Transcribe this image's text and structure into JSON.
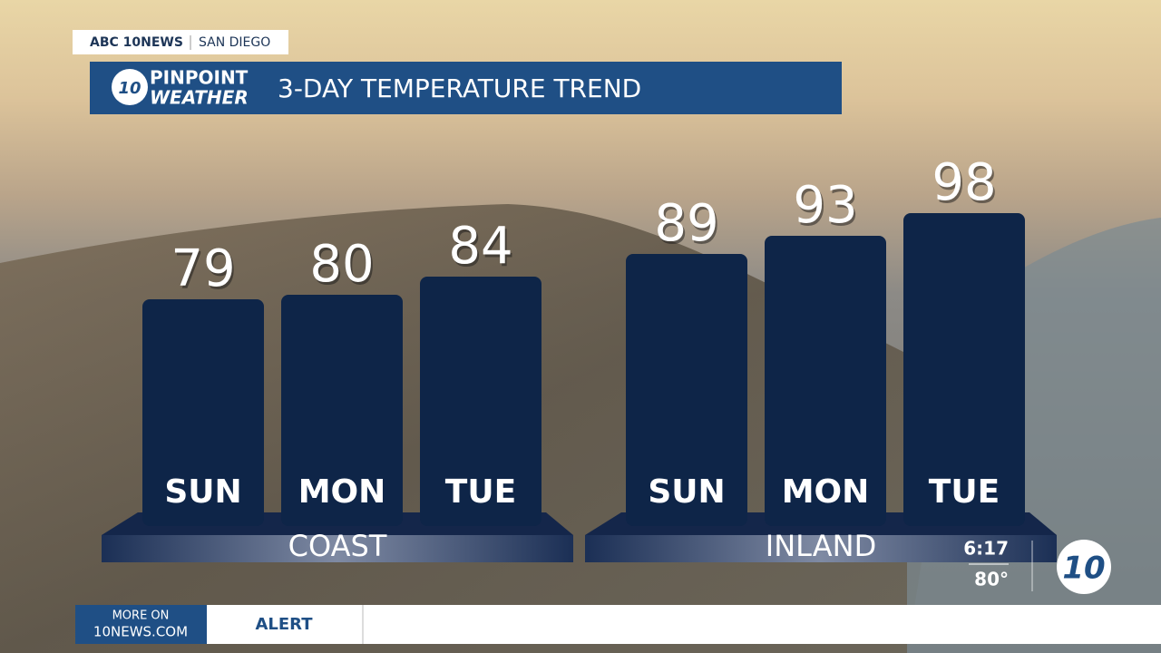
{
  "header": {
    "network": "ABC 10NEWS",
    "city": "SAN DIEGO",
    "logo_badge": "10",
    "logo_top": "PINPOINT",
    "logo_bottom": "WEATHER"
  },
  "chart_data": {
    "type": "bar",
    "title": "3-DAY TEMPERATURE TREND",
    "color": "#0e2548",
    "ylim": [
      29,
      101
    ],
    "groups": [
      {
        "name": "COAST",
        "categories": [
          "SUN",
          "MON",
          "TUE"
        ],
        "values": [
          79,
          80,
          84
        ]
      },
      {
        "name": "INLAND",
        "categories": [
          "SUN",
          "MON",
          "TUE"
        ],
        "values": [
          89,
          93,
          98
        ]
      }
    ]
  },
  "clock": {
    "time": "6:17",
    "temp": "80°"
  },
  "ticker": {
    "more_on": "MORE ON",
    "site": "10NEWS.COM",
    "label": "ALERT"
  }
}
